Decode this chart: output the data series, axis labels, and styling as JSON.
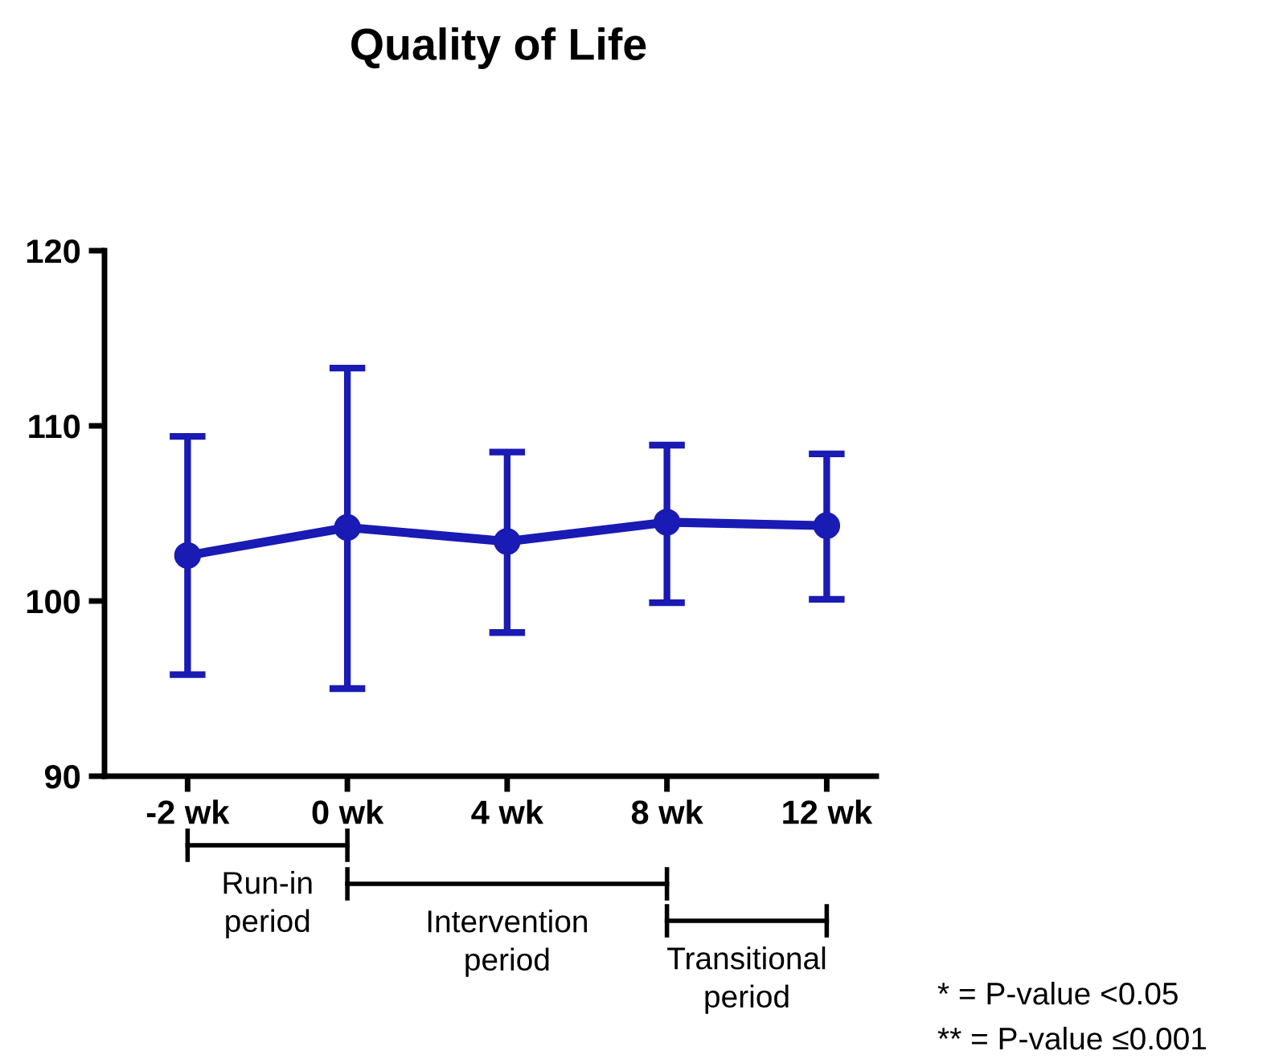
{
  "chart_data": {
    "type": "line",
    "title": "Quality of Life",
    "categories": [
      "-2 wk",
      "0 wk",
      "4 wk",
      "8 wk",
      "12 wk"
    ],
    "series": [
      {
        "color": "#1a1ab4",
        "values": [
          102.6,
          104.2,
          103.4,
          104.5,
          104.3
        ],
        "errors": [
          [
            95.8,
            109.4
          ],
          [
            95.0,
            113.3
          ],
          [
            98.2,
            108.5
          ],
          [
            99.9,
            108.9
          ],
          [
            100.1,
            108.4
          ]
        ]
      }
    ],
    "ylim": [
      90,
      120
    ],
    "yticks": [
      90,
      100,
      110,
      120
    ],
    "grid": false,
    "legend": false,
    "marker": "circle",
    "line_style": "solid",
    "annotations": [
      "Run-in\nperiod",
      "Intervention\nperiod",
      "Transitional\nperiod",
      "* = P-value <0.05",
      "** = P-value ≤0.001"
    ]
  }
}
